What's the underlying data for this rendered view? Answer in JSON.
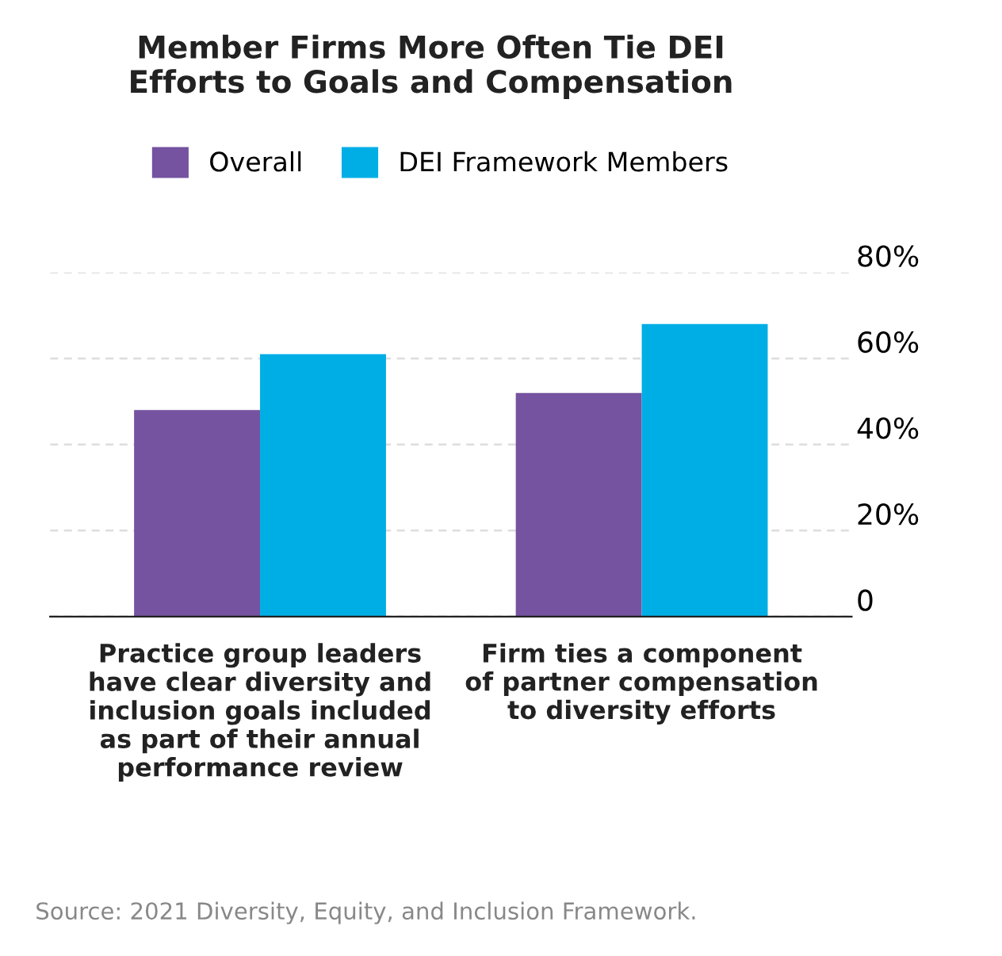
{
  "chart_data": {
    "type": "bar",
    "title": "Member Firms More Often Tie DEI\nEfforts to Goals and Compensation",
    "categories": [
      "Practice group leaders\nhave clear diversity and\ninclusion goals included\nas part of their annual\nperformance review",
      "Firm ties a component\nof partner compensation\nto diversity efforts"
    ],
    "series": [
      {
        "name": "Overall",
        "color": "#7553a0",
        "values": [
          48,
          52
        ]
      },
      {
        "name": "DEI Framework Members",
        "color": "#00aee6",
        "values": [
          61,
          68
        ]
      }
    ],
    "ylim": [
      0,
      80
    ],
    "yticks": [
      {
        "value": 0,
        "label": "0"
      },
      {
        "value": 20,
        "label": "20%"
      },
      {
        "value": 40,
        "label": "40%"
      },
      {
        "value": 60,
        "label": "60%"
      },
      {
        "value": 80,
        "label": "80%"
      }
    ],
    "grid": "y",
    "legend": "top",
    "annotations": [
      "Source: 2021 Diversity, Equity, and Inclusion Framework."
    ]
  }
}
